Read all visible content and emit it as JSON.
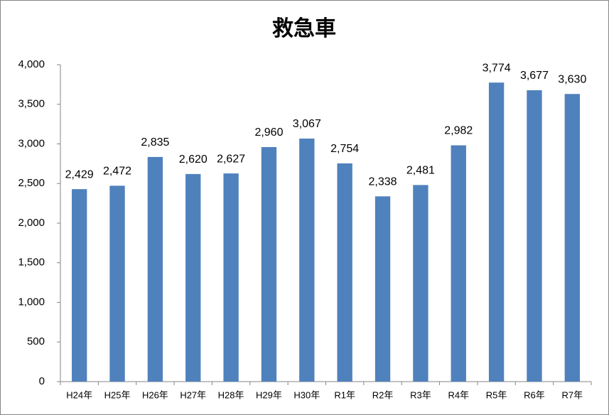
{
  "chart_data": {
    "type": "bar",
    "title": "救急車",
    "categories": [
      "H24年",
      "H25年",
      "H26年",
      "H27年",
      "H28年",
      "H29年",
      "H30年",
      "R1年",
      "R2年",
      "R3年",
      "R4年",
      "R5年",
      "R6年",
      "R7年"
    ],
    "values": [
      2429,
      2472,
      2835,
      2620,
      2627,
      2960,
      3067,
      2754,
      2338,
      2481,
      2982,
      3774,
      3677,
      3630
    ],
    "value_labels": [
      "2,429",
      "2,472",
      "2,835",
      "2,620",
      "2,627",
      "2,960",
      "3,067",
      "2,754",
      "2,338",
      "2,481",
      "2,982",
      "3,774",
      "3,677",
      "3,630"
    ],
    "color": "#4f81bd",
    "ylim": [
      0,
      4000
    ],
    "yticks": [
      0,
      500,
      {
        "value": 1000,
        "label": "1,000"
      },
      {
        "value": 1500,
        "label": "1,500"
      },
      {
        "value": 2000,
        "label": "2,000"
      },
      {
        "value": 2500,
        "label": "2,500"
      },
      {
        "value": 3000,
        "label": "3,000"
      },
      {
        "value": 3500,
        "label": "3,500"
      },
      {
        "value": 4000,
        "label": "4,000"
      }
    ],
    "grid": false
  }
}
